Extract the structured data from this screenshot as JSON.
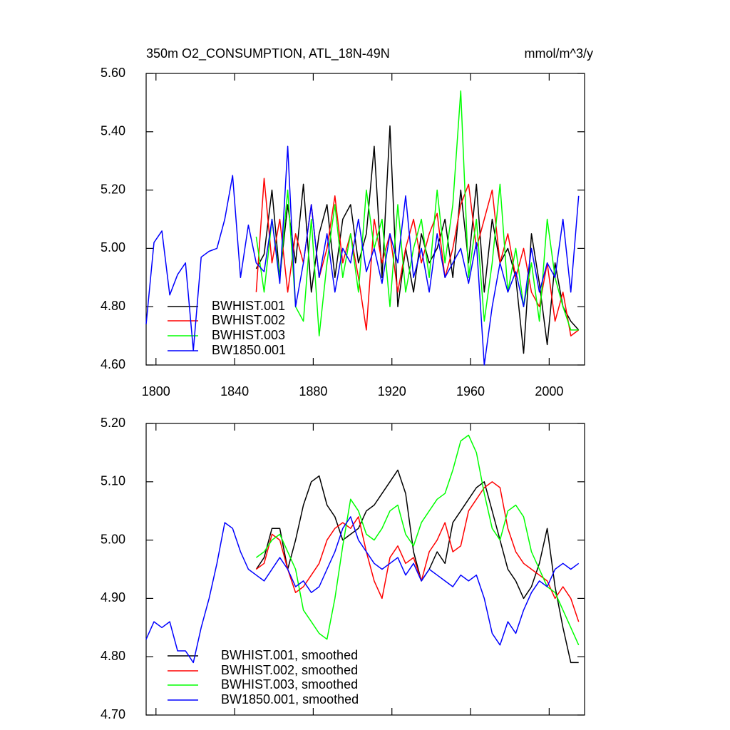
{
  "chart_data": [
    {
      "type": "line",
      "title": "350m O2_CONSUMPTION, ATL_18N-49N",
      "unit": "mmol/m^3/y",
      "x": [
        1795,
        1799,
        1803,
        1807,
        1811,
        1815,
        1819,
        1823,
        1827,
        1831,
        1835,
        1839,
        1843,
        1847,
        1851,
        1855,
        1859,
        1863,
        1867,
        1871,
        1875,
        1879,
        1883,
        1887,
        1891,
        1895,
        1899,
        1903,
        1907,
        1911,
        1915,
        1919,
        1923,
        1927,
        1931,
        1935,
        1939,
        1943,
        1947,
        1951,
        1955,
        1959,
        1963,
        1967,
        1971,
        1975,
        1979,
        1983,
        1987,
        1991,
        1995,
        1999,
        2003,
        2007,
        2011,
        2015
      ],
      "xlim": [
        1795,
        2018
      ],
      "xticks": [
        1800,
        1840,
        1880,
        1920,
        1960,
        2000
      ],
      "xtick_labels": true,
      "ylim": [
        4.6,
        5.6
      ],
      "yticks": [
        {
          "value": 4.6,
          "label": "4.60"
        },
        {
          "value": 4.8,
          "label": "4.80"
        },
        {
          "value": 5.0,
          "label": "5.00"
        },
        {
          "value": 5.2,
          "label": "5.20"
        },
        {
          "value": 5.4,
          "label": "5.40"
        },
        {
          "value": 5.6,
          "label": "5.60"
        }
      ],
      "legend": "lower left",
      "series": [
        {
          "name": "BWHIST.001",
          "color": "#000000",
          "values": [
            null,
            null,
            null,
            null,
            null,
            null,
            null,
            null,
            null,
            null,
            null,
            null,
            null,
            null,
            4.93,
            4.98,
            5.2,
            4.9,
            5.15,
            4.95,
            5.22,
            4.85,
            5.05,
            5.15,
            4.9,
            5.1,
            5.15,
            4.95,
            5.05,
            5.35,
            4.9,
            5.42,
            4.8,
            5.0,
            4.85,
            5.05,
            4.95,
            5.0,
            5.1,
            4.9,
            5.2,
            4.95,
            5.22,
            4.85,
            5.1,
            4.95,
            5.0,
            4.9,
            4.64,
            5.05,
            4.88,
            4.67,
            4.95,
            4.8,
            4.75,
            4.72
          ]
        },
        {
          "name": "BWHIST.002",
          "color": "#ff0000",
          "values": [
            null,
            null,
            null,
            null,
            null,
            null,
            null,
            null,
            null,
            null,
            null,
            null,
            null,
            null,
            4.85,
            5.24,
            4.95,
            5.1,
            4.85,
            5.05,
            4.95,
            5.15,
            4.9,
            5.0,
            5.18,
            4.95,
            5.05,
            4.9,
            4.72,
            5.1,
            4.95,
            5.05,
            4.85,
            5.0,
            5.1,
            4.95,
            5.05,
            5.12,
            4.9,
            5.0,
            5.15,
            5.22,
            5.0,
            5.1,
            5.2,
            4.95,
            5.05,
            4.9,
            5.0,
            4.85,
            4.8,
            4.95,
            4.75,
            4.85,
            4.7,
            4.72
          ]
        },
        {
          "name": "BWHIST.003",
          "color": "#00ff00",
          "values": [
            null,
            null,
            null,
            null,
            null,
            null,
            null,
            null,
            null,
            null,
            null,
            null,
            null,
            null,
            5.04,
            4.85,
            5.1,
            4.9,
            5.2,
            4.8,
            4.75,
            5.1,
            4.7,
            4.95,
            5.15,
            4.9,
            5.05,
            4.85,
            5.2,
            5.0,
            5.1,
            4.8,
            5.15,
            4.85,
            5.0,
            5.1,
            4.9,
            5.2,
            4.95,
            5.15,
            5.54,
            4.9,
            5.1,
            4.75,
            4.95,
            5.22,
            4.85,
            5.0,
            4.8,
            4.95,
            4.75,
            5.1,
            4.9,
            4.8,
            4.72,
            4.72
          ]
        },
        {
          "name": "BW1850.001",
          "color": "#0000ff",
          "values": [
            4.74,
            5.02,
            5.06,
            4.84,
            4.91,
            4.95,
            4.65,
            4.97,
            4.99,
            5.0,
            5.1,
            5.25,
            4.9,
            5.08,
            4.95,
            4.92,
            5.1,
            4.88,
            5.35,
            4.8,
            4.95,
            5.15,
            4.9,
            5.05,
            4.85,
            5.0,
            4.95,
            5.1,
            4.92,
            5.0,
            4.88,
            5.05,
            4.95,
            5.18,
            4.9,
            5.0,
            4.85,
            5.05,
            4.9,
            4.95,
            5.0,
            4.88,
            5.02,
            4.6,
            4.8,
            4.95,
            4.85,
            4.92,
            4.8,
            5.0,
            4.85,
            4.95,
            4.9,
            5.1,
            4.85,
            5.18
          ]
        }
      ]
    },
    {
      "type": "line",
      "x": [
        1795,
        1799,
        1803,
        1807,
        1811,
        1815,
        1819,
        1823,
        1827,
        1831,
        1835,
        1839,
        1843,
        1847,
        1851,
        1855,
        1859,
        1863,
        1867,
        1871,
        1875,
        1879,
        1883,
        1887,
        1891,
        1895,
        1899,
        1903,
        1907,
        1911,
        1915,
        1919,
        1923,
        1927,
        1931,
        1935,
        1939,
        1943,
        1947,
        1951,
        1955,
        1959,
        1963,
        1967,
        1971,
        1975,
        1979,
        1983,
        1987,
        1991,
        1995,
        1999,
        2003,
        2007,
        2011,
        2015
      ],
      "xlim": [
        1795,
        2018
      ],
      "xticks": [
        1800,
        1840,
        1880,
        1920,
        1960,
        2000
      ],
      "xtick_labels": false,
      "ylim": [
        4.7,
        5.2
      ],
      "yticks": [
        {
          "value": 4.7,
          "label": "4.70"
        },
        {
          "value": 4.8,
          "label": "4.80"
        },
        {
          "value": 4.9,
          "label": "4.90"
        },
        {
          "value": 5.0,
          "label": "5.00"
        },
        {
          "value": 5.1,
          "label": "5.10"
        },
        {
          "value": 5.2,
          "label": "5.20"
        }
      ],
      "legend": "lower left",
      "series": [
        {
          "name": "BWHIST.001, smoothed",
          "color": "#000000",
          "values": [
            null,
            null,
            null,
            null,
            null,
            null,
            null,
            null,
            null,
            null,
            null,
            null,
            null,
            null,
            4.95,
            4.97,
            5.02,
            5.02,
            4.95,
            5.0,
            5.06,
            5.1,
            5.11,
            5.06,
            5.04,
            5.0,
            5.01,
            5.02,
            5.05,
            5.06,
            5.08,
            5.1,
            5.12,
            5.08,
            4.98,
            4.93,
            4.95,
            4.98,
            4.96,
            5.03,
            5.05,
            5.07,
            5.09,
            5.1,
            5.05,
            5.0,
            4.95,
            4.93,
            4.9,
            4.92,
            4.96,
            5.02,
            4.92,
            4.85,
            4.79,
            4.79
          ]
        },
        {
          "name": "BWHIST.002, smoothed",
          "color": "#ff0000",
          "values": [
            null,
            null,
            null,
            null,
            null,
            null,
            null,
            null,
            null,
            null,
            null,
            null,
            null,
            null,
            4.95,
            4.96,
            5.01,
            5.0,
            4.95,
            4.91,
            4.92,
            4.94,
            4.96,
            5.0,
            5.02,
            5.03,
            5.02,
            5.04,
            4.98,
            4.93,
            4.9,
            4.97,
            4.99,
            4.96,
            4.97,
            4.93,
            4.98,
            5.0,
            5.03,
            4.98,
            4.99,
            5.05,
            5.07,
            5.09,
            5.1,
            5.09,
            5.02,
            4.98,
            4.96,
            4.95,
            4.94,
            4.93,
            4.9,
            4.92,
            4.9,
            4.86
          ]
        },
        {
          "name": "BWHIST.003, smoothed",
          "color": "#00ff00",
          "values": [
            null,
            null,
            null,
            null,
            null,
            null,
            null,
            null,
            null,
            null,
            null,
            null,
            null,
            null,
            4.97,
            4.98,
            5.0,
            5.01,
            4.98,
            4.95,
            4.88,
            4.86,
            4.84,
            4.83,
            4.9,
            4.99,
            5.07,
            5.05,
            5.01,
            5.0,
            5.02,
            5.05,
            5.06,
            5.01,
            4.99,
            5.03,
            5.05,
            5.07,
            5.08,
            5.12,
            5.17,
            5.18,
            5.15,
            5.08,
            5.02,
            5.0,
            5.05,
            5.06,
            5.04,
            4.98,
            4.95,
            4.92,
            4.91,
            4.88,
            4.85,
            4.82
          ]
        },
        {
          "name": "BW1850.001, smoothed",
          "color": "#0000ff",
          "values": [
            4.83,
            4.86,
            4.85,
            4.86,
            4.81,
            4.81,
            4.79,
            4.85,
            4.9,
            4.96,
            5.03,
            5.02,
            4.98,
            4.95,
            4.94,
            4.93,
            4.95,
            4.97,
            4.95,
            4.92,
            4.93,
            4.91,
            4.92,
            4.95,
            4.98,
            5.02,
            5.04,
            5.0,
            4.98,
            4.96,
            4.95,
            4.96,
            4.97,
            4.94,
            4.96,
            4.93,
            4.95,
            4.94,
            4.93,
            4.92,
            4.94,
            4.93,
            4.94,
            4.9,
            4.84,
            4.82,
            4.86,
            4.84,
            4.88,
            4.91,
            4.93,
            4.92,
            4.95,
            4.96,
            4.95,
            4.96
          ]
        }
      ]
    }
  ]
}
